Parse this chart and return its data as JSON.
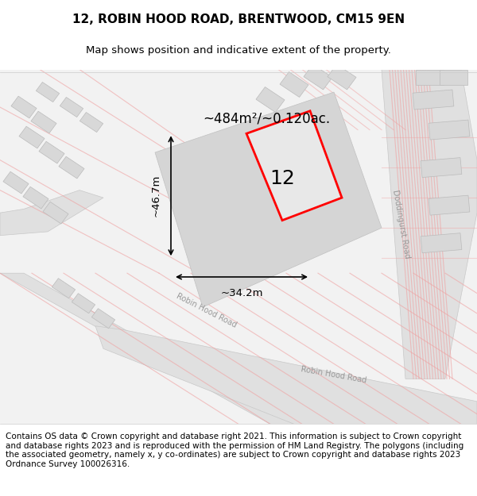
{
  "title_line1": "12, ROBIN HOOD ROAD, BRENTWOOD, CM15 9EN",
  "title_line2": "Map shows position and indicative extent of the property.",
  "footer_text": "Contains OS data © Crown copyright and database right 2021. This information is subject to Crown copyright and database rights 2023 and is reproduced with the permission of HM Land Registry. The polygons (including the associated geometry, namely x, y co-ordinates) are subject to Crown copyright and database rights 2023 Ordnance Survey 100026316.",
  "area_label": "~484m²/~0.120ac.",
  "width_label": "~34.2m",
  "height_label": "~46.7m",
  "number_label": "12",
  "background_color": "#f5f5f5",
  "map_background": "#f0f0f0",
  "road_color": "#cccccc",
  "building_fill": "#e0e0e0",
  "property_fill": "#d8d8d8",
  "property_outline": "#ff0000",
  "road_label_color": "#aaaaaa",
  "title_fontsize": 11,
  "subtitle_fontsize": 9.5,
  "footer_fontsize": 7.5,
  "annotation_fontsize": 10
}
